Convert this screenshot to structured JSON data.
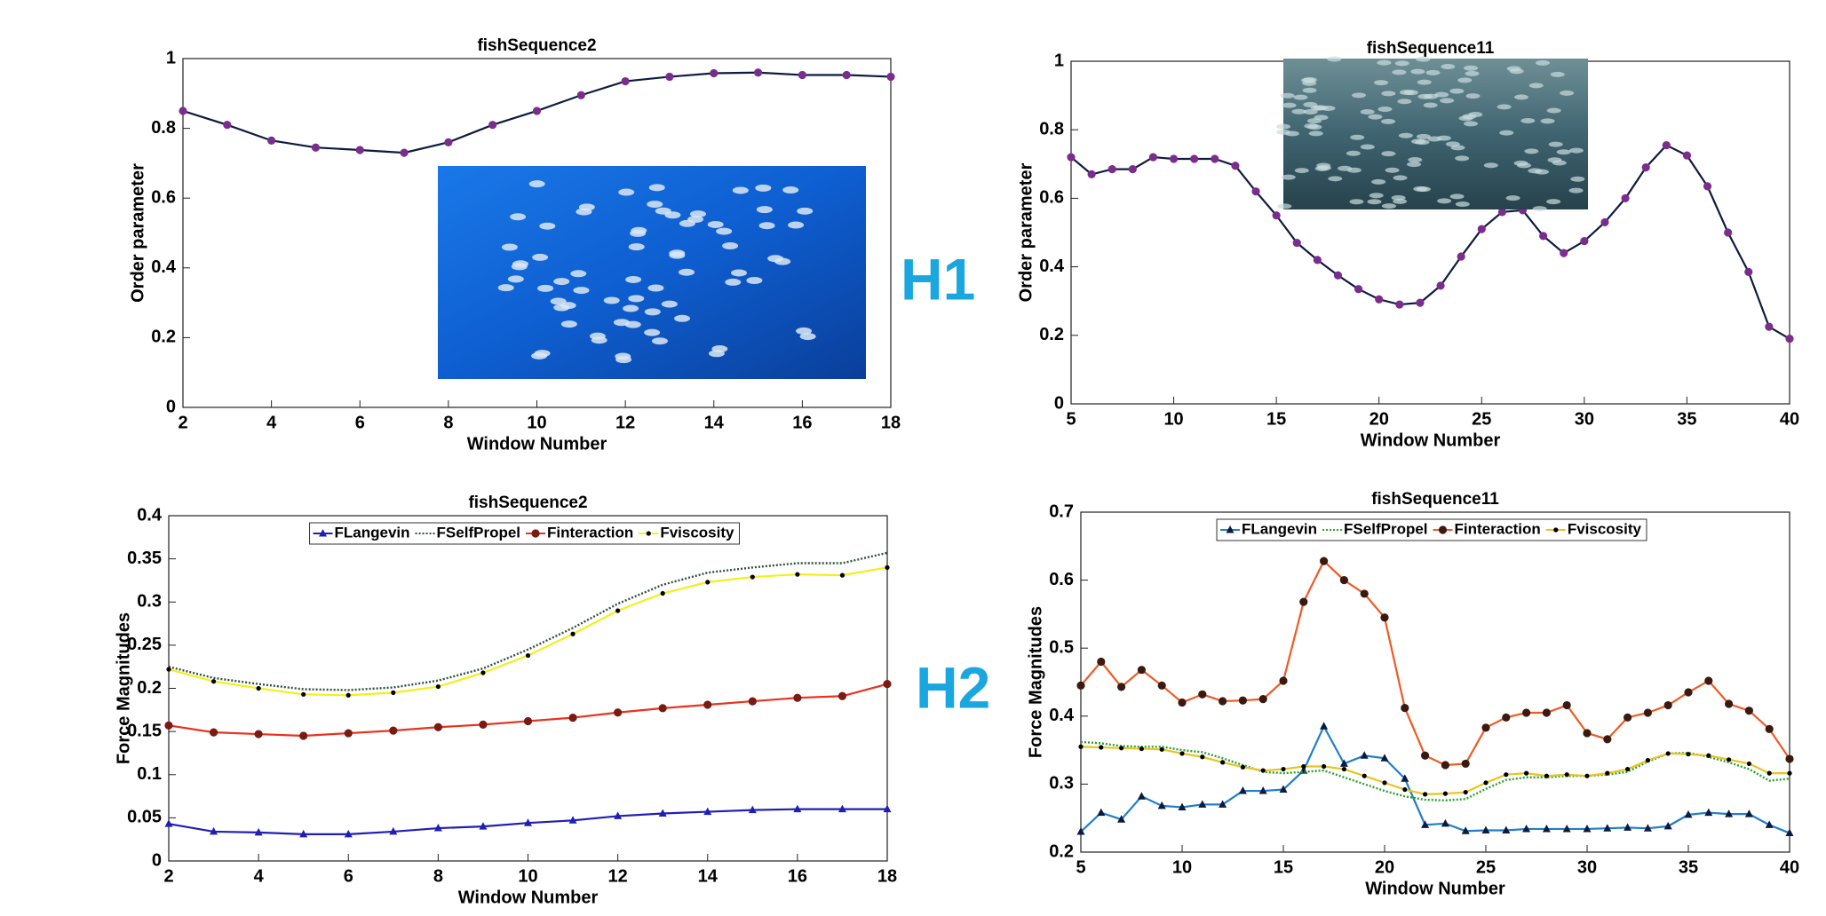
{
  "panel_labels": [
    "H1",
    "H2"
  ],
  "chart_data": [
    {
      "type": "line",
      "title": "fishSequence2",
      "xlabel": "Window Number",
      "ylabel": "Order parameter",
      "x": [
        2,
        3,
        4,
        5,
        6,
        7,
        8,
        9,
        10,
        11,
        12,
        13,
        14,
        15,
        16,
        17,
        18
      ],
      "values": [
        0.85,
        0.81,
        0.765,
        0.745,
        0.738,
        0.73,
        0.76,
        0.81,
        0.85,
        0.895,
        0.935,
        0.948,
        0.958,
        0.96,
        0.953,
        0.953,
        0.948
      ],
      "color": "#0d1b3e",
      "marker": "circle",
      "marker_color": "#7b2d8e",
      "xlim": [
        2,
        18
      ],
      "ylim": [
        0,
        1
      ],
      "xticks": [
        2,
        4,
        6,
        8,
        10,
        12,
        14,
        16,
        18
      ],
      "yticks": [
        0,
        0.2,
        0.4,
        0.6,
        0.8,
        1
      ]
    },
    {
      "type": "line",
      "title": "fishSequence11",
      "xlabel": "Window Number",
      "ylabel": "Order parameter",
      "x": [
        5,
        6,
        7,
        8,
        9,
        10,
        11,
        12,
        13,
        14,
        15,
        16,
        17,
        18,
        19,
        20,
        21,
        22,
        23,
        24,
        25,
        26,
        27,
        28,
        29,
        30,
        31,
        32,
        33,
        34,
        35,
        36,
        37,
        38,
        39,
        40
      ],
      "values": [
        0.72,
        0.67,
        0.685,
        0.685,
        0.72,
        0.715,
        0.715,
        0.715,
        0.695,
        0.62,
        0.55,
        0.47,
        0.42,
        0.375,
        0.335,
        0.305,
        0.29,
        0.295,
        0.345,
        0.43,
        0.51,
        0.56,
        0.565,
        0.49,
        0.44,
        0.475,
        0.53,
        0.6,
        0.69,
        0.755,
        0.725,
        0.635,
        0.5,
        0.385,
        0.225,
        0.19
      ],
      "color": "#0d1b3e",
      "marker": "circle",
      "marker_color": "#7b2d8e",
      "xlim": [
        5,
        40
      ],
      "ylim": [
        0,
        1
      ],
      "xticks": [
        5,
        10,
        15,
        20,
        25,
        30,
        35,
        40
      ],
      "yticks": [
        0,
        0.2,
        0.4,
        0.6,
        0.8,
        1
      ]
    },
    {
      "type": "line",
      "title": "fishSequence2",
      "xlabel": "Window Number",
      "ylabel": "Force Magnitudes",
      "legend": "upper center",
      "x": [
        2,
        3,
        4,
        5,
        6,
        7,
        8,
        9,
        10,
        11,
        12,
        13,
        14,
        15,
        16,
        17,
        18
      ],
      "series": [
        {
          "name": "FLangevin",
          "color": "#1f1fb4",
          "marker": "triangle",
          "marker_color": "#1f1fb4",
          "dash": "solid",
          "values": [
            0.043,
            0.034,
            0.033,
            0.031,
            0.031,
            0.034,
            0.038,
            0.04,
            0.044,
            0.047,
            0.052,
            0.055,
            0.057,
            0.059,
            0.06,
            0.06,
            0.06
          ]
        },
        {
          "name": "FSelfPropel",
          "color": "#2f4f3f",
          "marker": "none",
          "marker_color": "#2f4f3f",
          "dash": "dotted",
          "values": [
            0.225,
            0.212,
            0.205,
            0.199,
            0.198,
            0.201,
            0.209,
            0.223,
            0.245,
            0.27,
            0.298,
            0.32,
            0.334,
            0.34,
            0.345,
            0.345,
            0.357
          ]
        },
        {
          "name": "Finteraction",
          "color": "#e8321e",
          "marker": "circle",
          "marker_color": "#7a1a10",
          "dash": "solid",
          "values": [
            0.157,
            0.149,
            0.147,
            0.145,
            0.148,
            0.151,
            0.155,
            0.158,
            0.162,
            0.166,
            0.172,
            0.177,
            0.181,
            0.185,
            0.189,
            0.191,
            0.205
          ]
        },
        {
          "name": "Fviscosity",
          "color": "#f2f01a",
          "marker": "dot",
          "marker_color": "#000000",
          "dash": "solid",
          "values": [
            0.222,
            0.208,
            0.2,
            0.193,
            0.192,
            0.195,
            0.202,
            0.218,
            0.238,
            0.263,
            0.29,
            0.31,
            0.323,
            0.329,
            0.332,
            0.331,
            0.34
          ]
        }
      ],
      "xlim": [
        2,
        18
      ],
      "ylim": [
        0,
        0.4
      ],
      "xticks": [
        2,
        4,
        6,
        8,
        10,
        12,
        14,
        16,
        18
      ],
      "yticks": [
        0,
        0.05,
        0.1,
        0.15,
        0.2,
        0.25,
        0.3,
        0.35,
        0.4
      ]
    },
    {
      "type": "line",
      "title": "fishSequence11",
      "xlabel": "Window Number",
      "ylabel": "Force Magnitudes",
      "legend": "upper center",
      "x": [
        5,
        6,
        7,
        8,
        9,
        10,
        11,
        12,
        13,
        14,
        15,
        16,
        17,
        18,
        19,
        20,
        21,
        22,
        23,
        24,
        25,
        26,
        27,
        28,
        29,
        30,
        31,
        32,
        33,
        34,
        35,
        36,
        37,
        38,
        39,
        40
      ],
      "series": [
        {
          "name": "FLangevin",
          "color": "#1f7fc8",
          "marker": "triangle",
          "marker_color": "#0a1a40",
          "dash": "solid",
          "values": [
            0.23,
            0.258,
            0.248,
            0.282,
            0.268,
            0.266,
            0.27,
            0.27,
            0.29,
            0.29,
            0.292,
            0.32,
            0.385,
            0.33,
            0.342,
            0.338,
            0.308,
            0.24,
            0.242,
            0.231,
            0.232,
            0.232,
            0.234,
            0.234,
            0.234,
            0.234,
            0.235,
            0.236,
            0.235,
            0.238,
            0.255,
            0.258,
            0.256,
            0.256,
            0.24,
            0.228
          ]
        },
        {
          "name": "FSelfPropel",
          "color": "#2ca02c",
          "marker": "none",
          "marker_color": "#2ca02c",
          "dash": "dotted",
          "values": [
            0.362,
            0.36,
            0.356,
            0.355,
            0.355,
            0.35,
            0.347,
            0.338,
            0.328,
            0.318,
            0.316,
            0.318,
            0.32,
            0.31,
            0.3,
            0.29,
            0.282,
            0.277,
            0.276,
            0.278,
            0.293,
            0.306,
            0.31,
            0.31,
            0.312,
            0.312,
            0.314,
            0.318,
            0.333,
            0.345,
            0.346,
            0.34,
            0.332,
            0.322,
            0.305,
            0.308
          ]
        },
        {
          "name": "Finteraction",
          "color": "#ef5a24",
          "marker": "circle",
          "marker_color": "#3a1a10",
          "dash": "solid",
          "values": [
            0.445,
            0.48,
            0.443,
            0.468,
            0.445,
            0.42,
            0.432,
            0.422,
            0.423,
            0.425,
            0.452,
            0.568,
            0.628,
            0.6,
            0.58,
            0.545,
            0.412,
            0.342,
            0.328,
            0.33,
            0.383,
            0.398,
            0.405,
            0.405,
            0.416,
            0.375,
            0.366,
            0.398,
            0.405,
            0.416,
            0.435,
            0.452,
            0.418,
            0.408,
            0.381,
            0.337
          ]
        },
        {
          "name": "Fviscosity",
          "color": "#e8c420",
          "marker": "dot",
          "marker_color": "#000000",
          "dash": "solid",
          "values": [
            0.355,
            0.354,
            0.353,
            0.352,
            0.351,
            0.345,
            0.34,
            0.332,
            0.325,
            0.32,
            0.322,
            0.326,
            0.326,
            0.322,
            0.312,
            0.302,
            0.292,
            0.285,
            0.286,
            0.288,
            0.302,
            0.314,
            0.316,
            0.312,
            0.314,
            0.312,
            0.316,
            0.322,
            0.335,
            0.345,
            0.344,
            0.342,
            0.336,
            0.33,
            0.316,
            0.316
          ]
        }
      ],
      "xlim": [
        5,
        40
      ],
      "ylim": [
        0.2,
        0.7
      ],
      "xticks": [
        5,
        10,
        15,
        20,
        25,
        30,
        35,
        40
      ],
      "yticks": [
        0.2,
        0.3,
        0.4,
        0.5,
        0.6,
        0.7
      ]
    }
  ]
}
